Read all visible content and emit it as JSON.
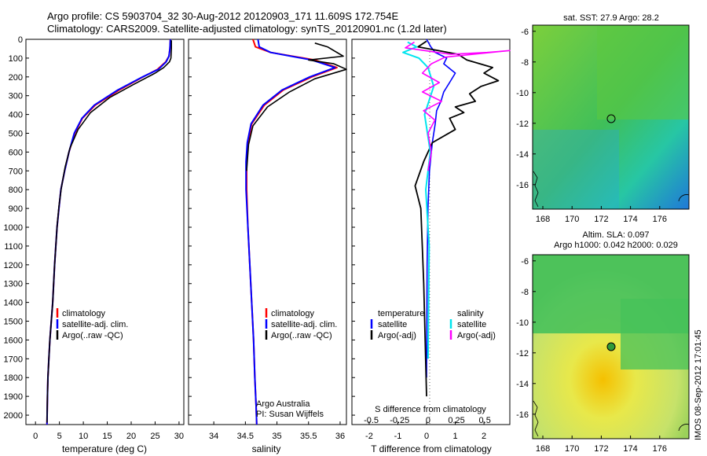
{
  "header": {
    "title_line1": "Argo profile: CS 5903704_32 30-Aug-2012 20120903_171 11.609S 172.754E",
    "title_line2": "Climatology: CARS2009. Satellite-adjusted climatology: synTS_20120901.nc (1.2d later)"
  },
  "colors": {
    "climatology": "#ff0000",
    "satellite": "#0000ff",
    "argo": "#000000",
    "sat_temp": "#00e5ee",
    "argo_sal": "#ff00ff"
  },
  "depth_axis": {
    "ylim": [
      0,
      2050
    ],
    "ticks": [
      "0",
      "100",
      "200",
      "300",
      "400",
      "500",
      "600",
      "700",
      "800",
      "900",
      "1000",
      "1100",
      "1200",
      "1300",
      "1400",
      "1500",
      "1600",
      "1700",
      "1800",
      "1900",
      "2000"
    ]
  },
  "panels": {
    "temperature": {
      "xlabel": "temperature (deg C)",
      "ticks": [
        "0",
        "5",
        "10",
        "15",
        "20",
        "25",
        "30"
      ],
      "legend": [
        "climatology",
        "satellite-adj. clim.",
        "Argo(..raw -QC)"
      ]
    },
    "salinity": {
      "xlabel": "salinity",
      "ticks": [
        "34",
        "34.5",
        "35",
        "35.5",
        "36"
      ],
      "legend": [
        "climatology",
        "satellite-adj. clim.",
        "Argo(..raw -QC)"
      ],
      "credit_line1": "Argo Australia",
      "credit_line2": "PI: Susan Wijffels"
    },
    "difference": {
      "xlabel": "T difference from climatology",
      "top_label": "S difference from climatology",
      "s_ticks": [
        "-0.5",
        "-0.25",
        "0",
        "0.25",
        "0.5"
      ],
      "t_ticks": [
        "-2",
        "-1",
        "0",
        "1",
        "2"
      ],
      "legend_temperature_head": "temperature",
      "legend_salinity_head": "salinity",
      "legend_temperature": [
        "satellite",
        "Argo(-adj)"
      ],
      "legend_salinity": [
        "satellite",
        "Argo(-adj)"
      ]
    }
  },
  "maps": {
    "sst": {
      "title": "sat. SST: 27.9 Argo: 28.2"
    },
    "sla": {
      "title_line1": "Altim. SLA: 0.097",
      "title_line2": "Argo h1000: 0.042 h2000: 0.029"
    },
    "y_ticks": [
      "-6",
      "-8",
      "-10",
      "-12",
      "-14",
      "-16"
    ],
    "x_ticks": [
      "168",
      "170",
      "172",
      "174",
      "176"
    ]
  },
  "footer": {
    "stamp": "IMOS 08-Sep-2012 17:01:45"
  },
  "chart_data": [
    {
      "type": "line",
      "title": "",
      "xlabel": "temperature (deg C)",
      "ylabel": "",
      "xlim": [
        -2,
        31
      ],
      "ylim": [
        0,
        2050
      ],
      "y_reversed": true,
      "series": [
        {
          "name": "climatology",
          "x": [
            28.2,
            28.1,
            27.9,
            27.2,
            25.5,
            22.5,
            17.5,
            12.5,
            9.8,
            8.2,
            7.0,
            6.1,
            5.3,
            4.9,
            4.5,
            4.0,
            3.6,
            3.3,
            3.0,
            2.8,
            2.6,
            2.5,
            2.4
          ],
          "y": [
            0,
            50,
            90,
            120,
            160,
            200,
            270,
            350,
            420,
            500,
            600,
            700,
            800,
            900,
            1000,
            1200,
            1400,
            1500,
            1600,
            1700,
            1800,
            1900,
            2050
          ]
        },
        {
          "name": "satellite-adj. clim.",
          "x": [
            28.2,
            28.1,
            27.9,
            27.3,
            25.7,
            22.4,
            17.2,
            12.3,
            9.7,
            8.1,
            7.0,
            6.1,
            5.3,
            4.9,
            4.5,
            4.0,
            3.6,
            3.3,
            3.0,
            2.8,
            2.6,
            2.5,
            2.4
          ],
          "y": [
            0,
            50,
            90,
            120,
            160,
            200,
            270,
            350,
            420,
            500,
            600,
            700,
            800,
            900,
            1000,
            1200,
            1400,
            1500,
            1600,
            1700,
            1800,
            1900,
            2050
          ]
        },
        {
          "name": "Argo(..raw -QC)",
          "x": [
            28.4,
            28.4,
            28.3,
            28.0,
            26.8,
            25.0,
            20.5,
            15.5,
            11.5,
            8.9,
            7.2,
            6.2,
            5.4,
            4.9,
            4.5,
            4.0,
            3.6,
            3.3,
            3.0,
            2.8,
            2.6,
            2.5,
            2.4
          ],
          "y": [
            5,
            50,
            100,
            120,
            150,
            180,
            240,
            310,
            390,
            480,
            580,
            680,
            790,
            890,
            1000,
            1200,
            1400,
            1500,
            1600,
            1700,
            1800,
            1900,
            2040
          ]
        }
      ]
    },
    {
      "type": "line",
      "title": "",
      "xlabel": "salinity",
      "ylabel": "",
      "xlim": [
        33.6,
        36.1
      ],
      "ylim": [
        0,
        2050
      ],
      "y_reversed": true,
      "series": [
        {
          "name": "climatology",
          "x": [
            34.62,
            34.66,
            34.9,
            35.6,
            35.95,
            35.55,
            35.1,
            34.8,
            34.6,
            34.54,
            34.52,
            34.52,
            34.54,
            34.57,
            34.6,
            34.63,
            34.65,
            34.67,
            34.68
          ],
          "y": [
            0,
            40,
            70,
            110,
            150,
            200,
            270,
            350,
            450,
            550,
            650,
            800,
            1000,
            1200,
            1400,
            1600,
            1800,
            1950,
            2050
          ]
        },
        {
          "name": "satellite-adj. clim.",
          "x": [
            34.7,
            34.72,
            34.9,
            35.55,
            35.92,
            35.52,
            35.08,
            34.78,
            34.59,
            34.53,
            34.51,
            34.51,
            34.54,
            34.57,
            34.6,
            34.63,
            34.65,
            34.67,
            34.68
          ],
          "y": [
            0,
            40,
            70,
            110,
            150,
            200,
            270,
            350,
            450,
            550,
            650,
            800,
            1000,
            1200,
            1400,
            1600,
            1800,
            1950,
            2050
          ]
        },
        {
          "name": "Argo(..raw -QC)",
          "x": [
            35.6,
            35.8,
            36.05,
            35.5,
            35.9,
            36.1,
            35.6,
            35.2,
            34.85,
            34.62,
            34.55,
            34.53,
            34.52
          ],
          "y": [
            20,
            40,
            90,
            110,
            130,
            160,
            210,
            280,
            360,
            460,
            560,
            650,
            700
          ]
        }
      ]
    },
    {
      "type": "line",
      "title": "",
      "xlabel": "T difference from climatology",
      "ylabel": "S difference from climatology",
      "xlim": [
        -2.6,
        2.9
      ],
      "ylim": [
        0,
        2050
      ],
      "y_reversed": true,
      "series": [
        {
          "name": "temperature satellite",
          "x": [
            0,
            0.15,
            0.3,
            0.7,
            0.6,
            1.0,
            0.8,
            0.6,
            0.5,
            0.35,
            0.3,
            0.2,
            0.1,
            0.05,
            0.02,
            0
          ],
          "y": [
            0,
            40,
            70,
            100,
            130,
            180,
            230,
            280,
            330,
            380,
            450,
            550,
            700,
            900,
            1200,
            1800
          ]
        },
        {
          "name": "temperature Argo(-adj)",
          "x": [
            0,
            -0.3,
            0.4,
            1.1,
            1.4,
            2.3,
            2.0,
            2.5,
            1.9,
            1.5,
            1.7,
            1.0,
            1.3,
            0.8,
            1.0,
            0.2,
            -0.1,
            -0.4,
            -0.2,
            -0.1,
            0
          ],
          "y": [
            10,
            40,
            60,
            80,
            110,
            150,
            180,
            220,
            250,
            290,
            330,
            360,
            390,
            420,
            480,
            550,
            650,
            780,
            900,
            1300,
            1900
          ]
        },
        {
          "name": "salinity satellite",
          "x": [
            -0.18,
            -0.1,
            -0.22,
            -0.08,
            0,
            0.05,
            -0.03,
            0.02,
            -0.02,
            0.01,
            0
          ],
          "y": [
            15,
            40,
            70,
            100,
            150,
            250,
            400,
            600,
            800,
            1100,
            1700
          ]
        },
        {
          "name": "salinity Argo(-adj)",
          "x": [
            -0.12,
            -0.2,
            0.2,
            0.52,
            0.85,
            0.15,
            0.03,
            -0.05,
            0.1,
            -0.05,
            0.12,
            -0.04,
            0.06,
            0,
            0.03,
            0
          ],
          "y": [
            15,
            45,
            80,
            70,
            60,
            95,
            130,
            180,
            230,
            280,
            330,
            380,
            430,
            500,
            600,
            700
          ]
        }
      ]
    }
  ]
}
